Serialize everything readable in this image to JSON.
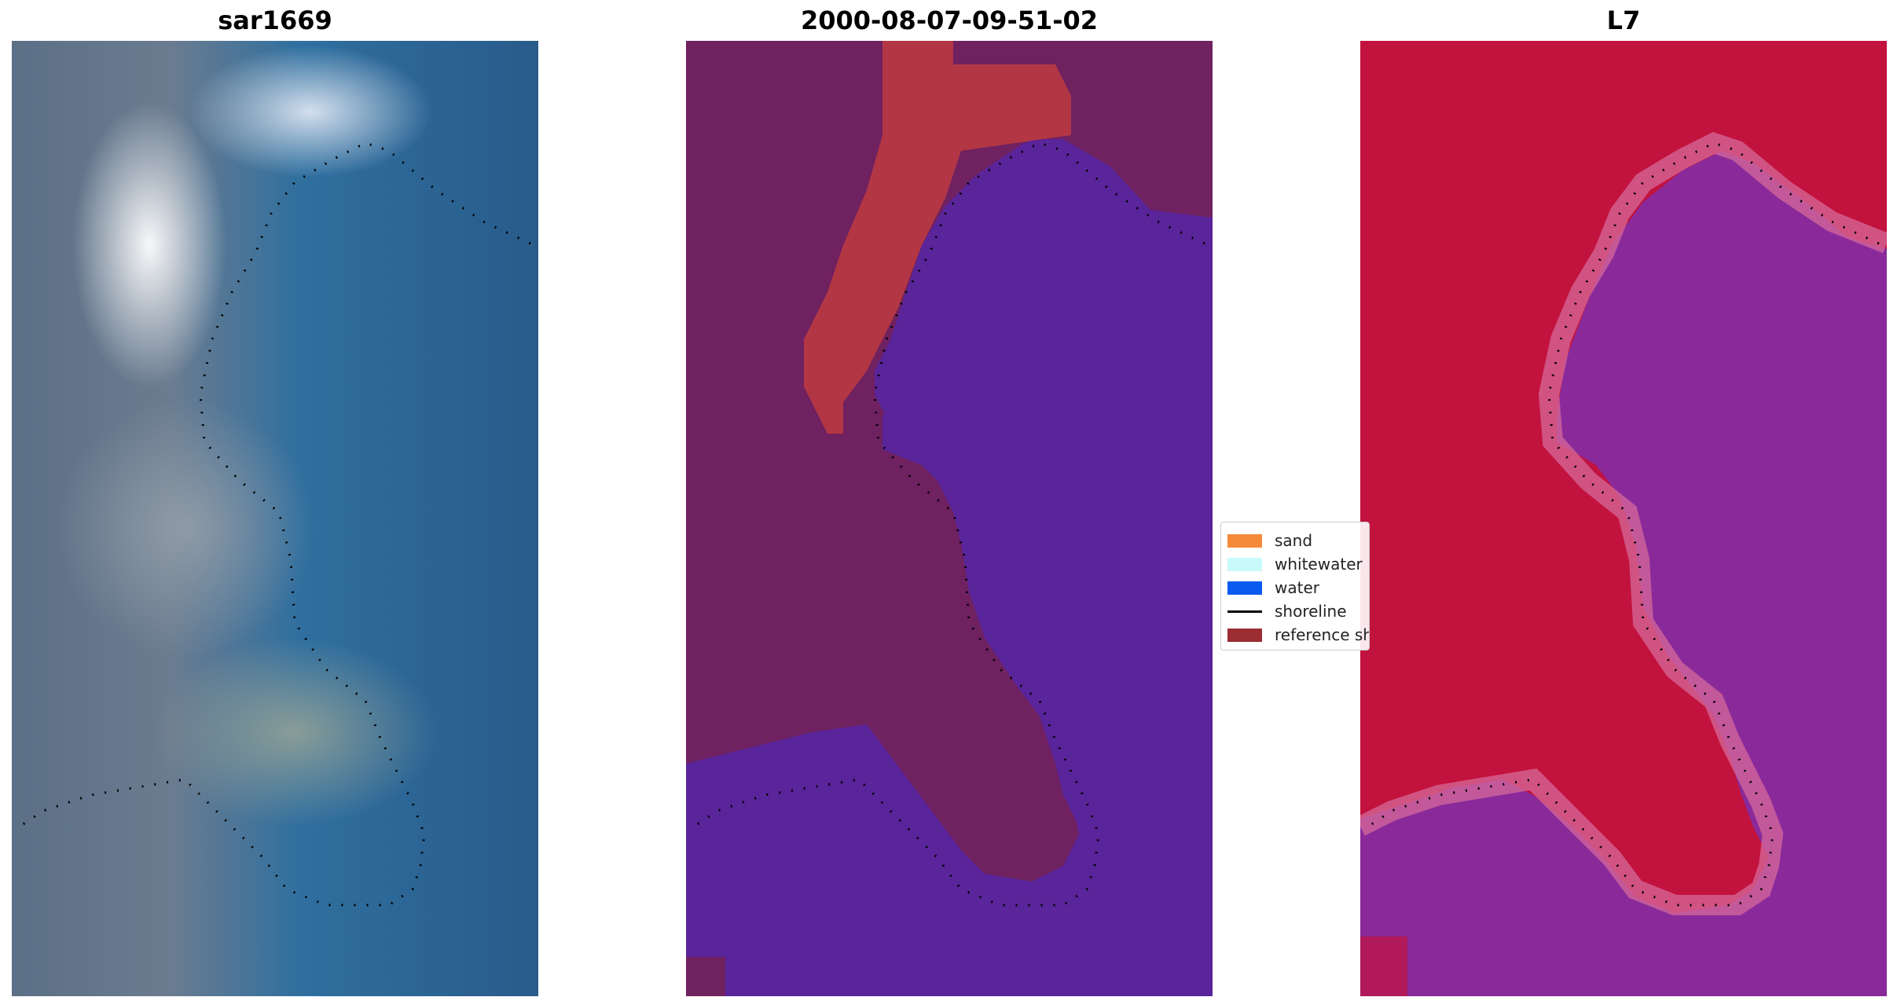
{
  "panels": [
    {
      "title": "sar1669"
    },
    {
      "title": "2000-08-07-09-51-02"
    },
    {
      "title": "L7"
    }
  ],
  "legend": {
    "items": [
      {
        "label": "sand",
        "color": "#f58a3a",
        "type": "patch"
      },
      {
        "label": "whitewater",
        "color": "#c8fafa",
        "type": "patch"
      },
      {
        "label": "water",
        "color": "#0a5af0",
        "type": "patch"
      },
      {
        "label": "shoreline",
        "color": "#000000",
        "type": "line"
      },
      {
        "label": "reference shoreline",
        "color": "#9b2d33",
        "type": "patch"
      }
    ]
  },
  "colors": {
    "class_water": "#5a249a",
    "class_land": "#6f2160",
    "class_sand_overlay": "#c0393f",
    "l7_land": "#c2123e",
    "l7_water": "#8a2a9a",
    "shoreline": "#000000"
  }
}
